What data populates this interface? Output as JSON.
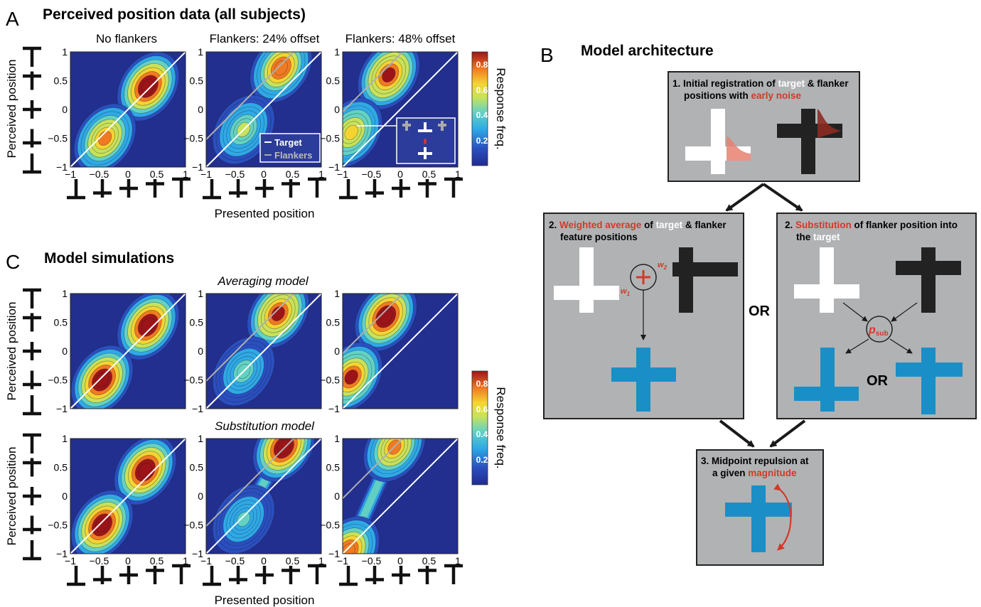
{
  "panel_a": {
    "letter": "A",
    "title": "Perceived position data (all subjects)",
    "subtitles": [
      "No flankers",
      "Flankers: 24% offset",
      "Flankers: 48% offset"
    ],
    "ylabel": "Perceived position",
    "xlabel": "Presented position",
    "legend": {
      "target": "Target",
      "flankers": "Flankers"
    }
  },
  "panel_c": {
    "letter": "C",
    "title": "Model simulations",
    "rows": [
      "Averaging model",
      "Substitution model"
    ],
    "ylabel": "Perceived position",
    "xlabel": "Presented position"
  },
  "colorbar": {
    "label": "Response freq.",
    "ticks": [
      "0.8",
      "0.6",
      "0.4",
      "0.2"
    ]
  },
  "ticks": {
    "x": [
      "−1",
      "−0.5",
      "0",
      "0.5",
      "1"
    ],
    "y": [
      "1",
      "0.5",
      "0",
      "−0.5",
      "−1"
    ]
  },
  "chart_data": [
    {
      "type": "heatmap",
      "panel": "A",
      "title": "No flankers",
      "xlim": [
        -1,
        1
      ],
      "ylim": [
        -1,
        1
      ],
      "colormap": "jet",
      "range": [
        0,
        0.9
      ],
      "peaks": [
        {
          "x": 0.35,
          "y": 0.4,
          "v": 0.9
        },
        {
          "x": -0.4,
          "y": -0.5,
          "v": 0.7
        }
      ]
    },
    {
      "type": "heatmap",
      "panel": "A",
      "title": "Flankers: 24% offset",
      "xlim": [
        -1,
        1
      ],
      "ylim": [
        -1,
        1
      ],
      "colormap": "jet",
      "range": [
        0,
        0.9
      ],
      "peaks": [
        {
          "x": 0.3,
          "y": 0.72,
          "v": 0.75
        },
        {
          "x": -0.35,
          "y": -0.35,
          "v": 0.45
        }
      ]
    },
    {
      "type": "heatmap",
      "panel": "A",
      "title": "Flankers: 48% offset",
      "xlim": [
        -1,
        1
      ],
      "ylim": [
        -1,
        1
      ],
      "colormap": "jet",
      "range": [
        0,
        0.9
      ],
      "peaks": [
        {
          "x": -0.2,
          "y": 0.6,
          "v": 0.85
        },
        {
          "x": -0.85,
          "y": -0.4,
          "v": 0.6
        }
      ]
    },
    {
      "type": "heatmap",
      "panel": "C",
      "row": "Averaging model",
      "xlim": [
        -1,
        1
      ],
      "ylim": [
        -1,
        1
      ],
      "colormap": "jet",
      "range": [
        0,
        0.9
      ],
      "peaks": [
        {
          "x": 0.35,
          "y": 0.45,
          "v": 0.9
        },
        {
          "x": -0.45,
          "y": -0.5,
          "v": 0.9
        }
      ]
    },
    {
      "type": "heatmap",
      "panel": "C",
      "row": "Averaging model",
      "xlim": [
        -1,
        1
      ],
      "ylim": [
        -1,
        1
      ],
      "colormap": "jet",
      "range": [
        0,
        0.9
      ],
      "peaks": [
        {
          "x": 0.25,
          "y": 0.65,
          "v": 0.85
        },
        {
          "x": -0.35,
          "y": -0.35,
          "v": 0.35
        }
      ]
    },
    {
      "type": "heatmap",
      "panel": "C",
      "row": "Averaging model",
      "xlim": [
        -1,
        1
      ],
      "ylim": [
        -1,
        1
      ],
      "colormap": "jet",
      "range": [
        0,
        0.9
      ],
      "peaks": [
        {
          "x": -0.25,
          "y": 0.6,
          "v": 0.9
        },
        {
          "x": -0.85,
          "y": -0.45,
          "v": 0.8
        }
      ]
    },
    {
      "type": "heatmap",
      "panel": "C",
      "row": "Substitution model",
      "xlim": [
        -1,
        1
      ],
      "ylim": [
        -1,
        1
      ],
      "colormap": "jet",
      "range": [
        0,
        0.9
      ],
      "peaks": [
        {
          "x": 0.3,
          "y": 0.45,
          "v": 0.9
        },
        {
          "x": -0.45,
          "y": -0.5,
          "v": 0.9
        }
      ]
    },
    {
      "type": "heatmap",
      "panel": "C",
      "row": "Substitution model",
      "xlim": [
        -1,
        1
      ],
      "ylim": [
        -1,
        1
      ],
      "colormap": "jet",
      "range": [
        0,
        0.9
      ],
      "peaks": [
        {
          "x": 0.35,
          "y": 0.85,
          "v": 0.9
        },
        {
          "x": -0.35,
          "y": -0.4,
          "v": 0.3
        }
      ]
    },
    {
      "type": "heatmap",
      "panel": "C",
      "row": "Substitution model",
      "xlim": [
        -1,
        1
      ],
      "ylim": [
        -1,
        1
      ],
      "colormap": "jet",
      "range": [
        0,
        0.9
      ],
      "peaks": [
        {
          "x": -0.1,
          "y": 0.85,
          "v": 0.7
        },
        {
          "x": -0.9,
          "y": -0.95,
          "v": 0.75
        }
      ]
    }
  ],
  "panel_b": {
    "letter": "B",
    "title": "Model architecture",
    "box1": {
      "line1a": "1. Initial registration of ",
      "line1b": "target",
      "line1c": " & flanker",
      "line2a": "positions with ",
      "line2b": "early noise"
    },
    "box2a": {
      "line1a": "2. ",
      "line1b": "Weighted average",
      "line1c": " of ",
      "line1d": "target",
      "line1e": " & flanker",
      "line2": "feature positions",
      "w1": "w",
      "w1sub": "1",
      "w2": "w",
      "w2sub": "2"
    },
    "box2b": {
      "line1a": "2. ",
      "line1b": "Substitution",
      "line1c": " of flanker position into",
      "line2a": "the ",
      "line2b": "target",
      "psub": "p",
      "psub_sub": "sub",
      "or": "OR"
    },
    "or_between": "OR",
    "box3": {
      "line1": "3. Midpoint repulsion at",
      "line2a": "a given ",
      "line2b": "magnitude"
    }
  }
}
